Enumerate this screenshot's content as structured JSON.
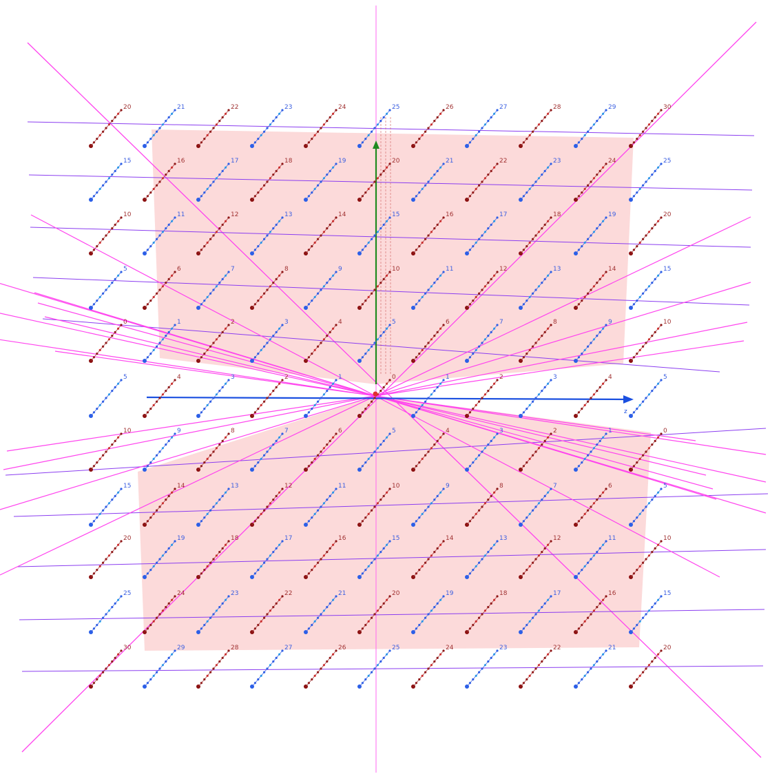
{
  "scene": {
    "axis_label_z": "z",
    "row_numbers": [
      [
        20,
        21,
        22,
        23,
        24,
        25,
        26,
        27,
        28,
        29,
        30
      ],
      [
        15,
        16,
        17,
        18,
        19,
        20,
        21,
        22,
        23,
        24,
        25
      ],
      [
        10,
        11,
        12,
        13,
        14,
        15,
        16,
        17,
        18,
        19,
        20
      ],
      [
        5,
        6,
        7,
        8,
        9,
        10,
        11,
        12,
        13,
        14,
        15
      ],
      [
        0,
        1,
        2,
        3,
        4,
        5,
        6,
        7,
        8,
        9,
        10
      ],
      [
        5,
        4,
        3,
        2,
        1,
        0,
        1,
        2,
        3,
        4,
        5
      ],
      [
        10,
        9,
        8,
        7,
        6,
        5,
        4,
        3,
        2,
        1,
        0
      ],
      [
        15,
        14,
        13,
        12,
        11,
        10,
        9,
        8,
        7,
        6,
        5
      ],
      [
        20,
        19,
        18,
        17,
        16,
        15,
        14,
        13,
        12,
        11,
        10
      ],
      [
        25,
        24,
        23,
        22,
        21,
        20,
        19,
        18,
        17,
        16,
        15
      ],
      [
        30,
        29,
        28,
        27,
        26,
        25,
        24,
        23,
        22,
        21,
        20
      ]
    ],
    "colors": {
      "plane": "#fbd3d3",
      "magenta": "#ff44ee",
      "violet": "#8a3cf0",
      "blue_axis": "#1a4fe0",
      "green_axis": "#1f8a1f",
      "dark_red": "#8b1010",
      "red": "#e03030",
      "blue": "#2a5fe8",
      "cyan": "#29b6ee",
      "label_red": "#a03232",
      "label_blue": "#3a5ee0"
    }
  }
}
